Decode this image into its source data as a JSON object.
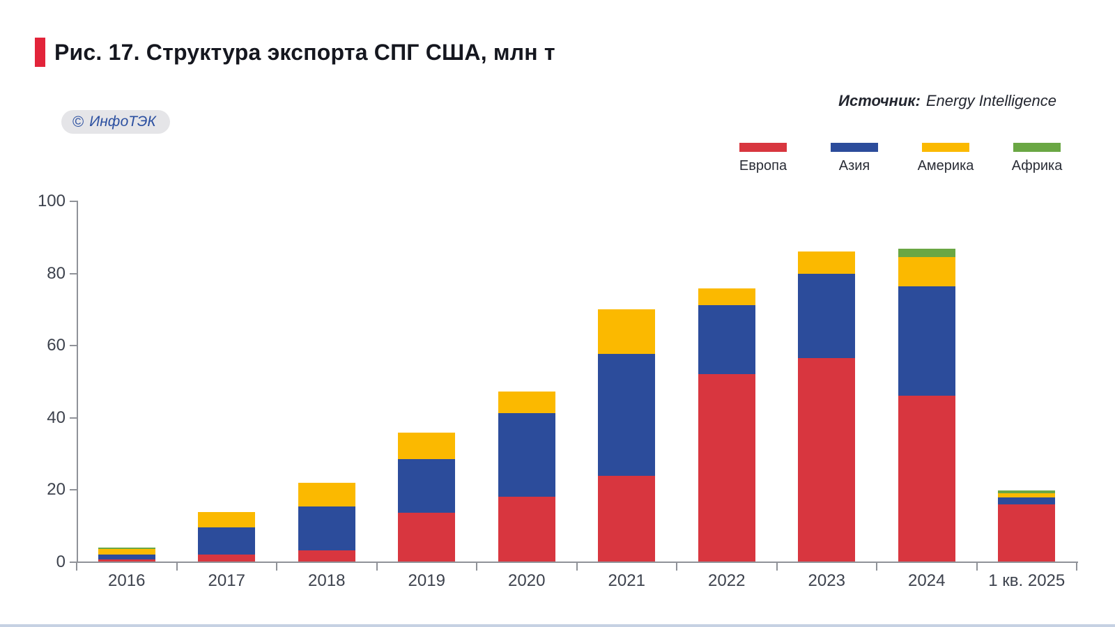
{
  "figure": {
    "title": "Рис. 17. Структура экспорта СПГ США, млн т",
    "badge": {
      "symbol": "©",
      "label": "ИнфоТЭК"
    },
    "source_label": "Источник:",
    "source_value": "Energy Intelligence"
  },
  "colors": {
    "accent_red": "#E2243A",
    "europe": "#D8363F",
    "asia": "#2C4C9B",
    "america": "#FBB900",
    "africa": "#6AA744",
    "axis": "#8F9298",
    "tick_text": "#3D424D",
    "badge_bg": "#E5E5E8",
    "badge_text": "#2B4FA0",
    "bottom_rule": "#C6D1E3"
  },
  "chart_data": {
    "type": "bar",
    "stacked": true,
    "title": "Структура экспорта СПГ США, млн т",
    "xlabel": "",
    "ylabel": "млн т",
    "ylim": [
      0,
      100
    ],
    "yticks": [
      0,
      20,
      40,
      60,
      80,
      100
    ],
    "grid": false,
    "legend_position": "top-right",
    "categories": [
      "2016",
      "2017",
      "2018",
      "2019",
      "2020",
      "2021",
      "2022",
      "2023",
      "2024",
      "1 кв. 2025"
    ],
    "series": [
      {
        "name": "Европа",
        "color_key": "europe",
        "values": [
          0.5,
          1.9,
          3.0,
          13.6,
          18.0,
          23.7,
          52.0,
          56.3,
          46.0,
          15.8
        ]
      },
      {
        "name": "Азия",
        "color_key": "asia",
        "values": [
          1.5,
          7.6,
          12.2,
          14.7,
          23.1,
          33.9,
          19.0,
          23.5,
          30.2,
          1.9
        ]
      },
      {
        "name": "Америка",
        "color_key": "america",
        "values": [
          1.5,
          4.3,
          6.6,
          7.4,
          6.1,
          12.2,
          4.7,
          6.1,
          8.2,
          1.2
        ]
      },
      {
        "name": "Африка",
        "color_key": "africa",
        "values": [
          0.4,
          0,
          0,
          0,
          0,
          0,
          0,
          0,
          2.3,
          0.7
        ]
      }
    ],
    "totals": [
      3.9,
      13.8,
      21.8,
      35.7,
      47.2,
      69.8,
      75.7,
      85.9,
      86.7,
      19.6
    ]
  }
}
